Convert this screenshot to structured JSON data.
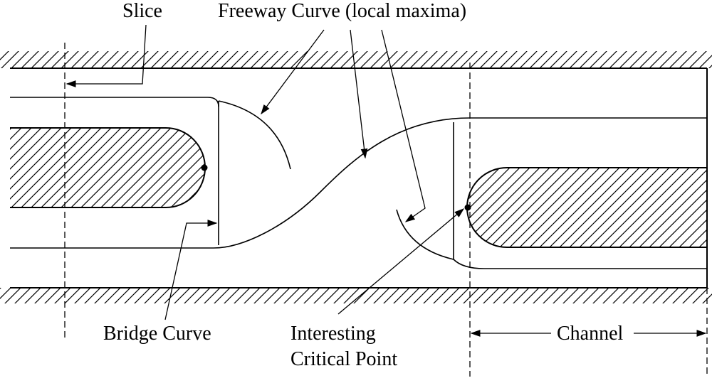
{
  "labels": {
    "slice": "Slice",
    "freeway_curve": "Freeway Curve (local maxima)",
    "bridge_curve": "Bridge Curve",
    "interesting_line1": "Interesting",
    "interesting_line2": "Critical Point",
    "channel": "Channel"
  },
  "colors": {
    "stroke": "#000000",
    "background": "#ffffff"
  }
}
